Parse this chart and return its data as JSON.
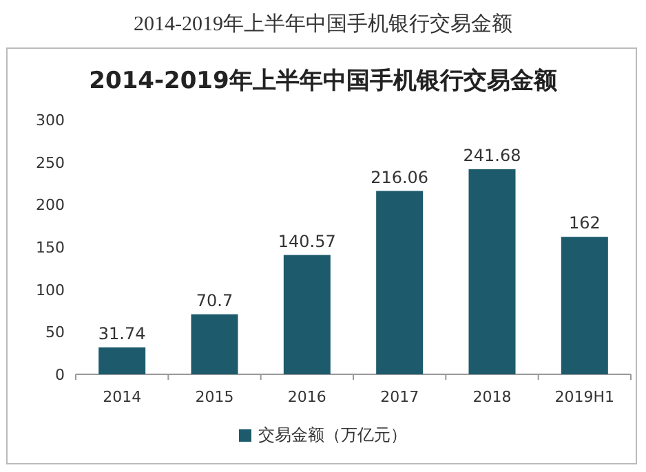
{
  "chart_data": {
    "type": "bar",
    "title": "2014-2019年上半年中国手机银行交易金额",
    "subtitle": "2014-2019年上半年中国手机银行交易金额",
    "categories": [
      "2014",
      "2015",
      "2016",
      "2017",
      "2018",
      "2019H1"
    ],
    "series": [
      {
        "name": "交易金额（万亿元）",
        "color": "#1d5a6c",
        "values": [
          31.74,
          70.7,
          140.57,
          216.06,
          241.68,
          162
        ]
      }
    ],
    "ylim": [
      0,
      300
    ],
    "yticks": [
      0,
      50,
      100,
      150,
      200,
      250,
      300
    ],
    "data_labels": true,
    "legend": "bottom",
    "grid": false
  }
}
